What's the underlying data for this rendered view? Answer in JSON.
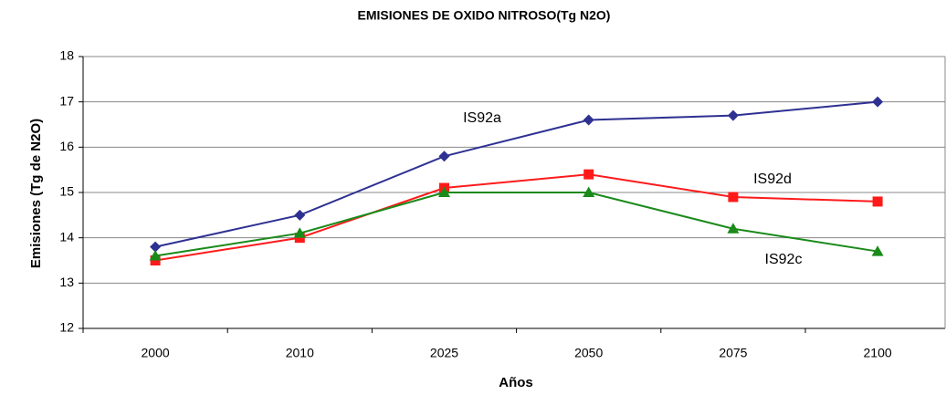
{
  "chart_data": {
    "type": "line",
    "title": "EMISIONES DE OXIDO NITROSO(Tg N2O)",
    "x_label": "Años",
    "y_label": "Emisiones (Tg de N2O)",
    "categories": [
      "2000",
      "2010",
      "2025",
      "2050",
      "2075",
      "2100"
    ],
    "series": [
      {
        "name": "IS92a",
        "color": "#2e3192",
        "marker": "diamond",
        "values": [
          13.8,
          14.5,
          15.8,
          16.6,
          16.7,
          17.0
        ]
      },
      {
        "name": "IS92d",
        "color": "#ff1a1a",
        "marker": "square",
        "values": [
          13.5,
          14.0,
          15.1,
          15.4,
          14.9,
          14.8
        ]
      },
      {
        "name": "IS92c",
        "color": "#1a8a1a",
        "marker": "triangle",
        "values": [
          13.6,
          14.1,
          15.0,
          15.0,
          14.2,
          13.7
        ]
      }
    ],
    "ylim": [
      12,
      18
    ],
    "yticks": [
      12,
      13,
      14,
      15,
      16,
      17,
      18
    ],
    "grid": true
  }
}
